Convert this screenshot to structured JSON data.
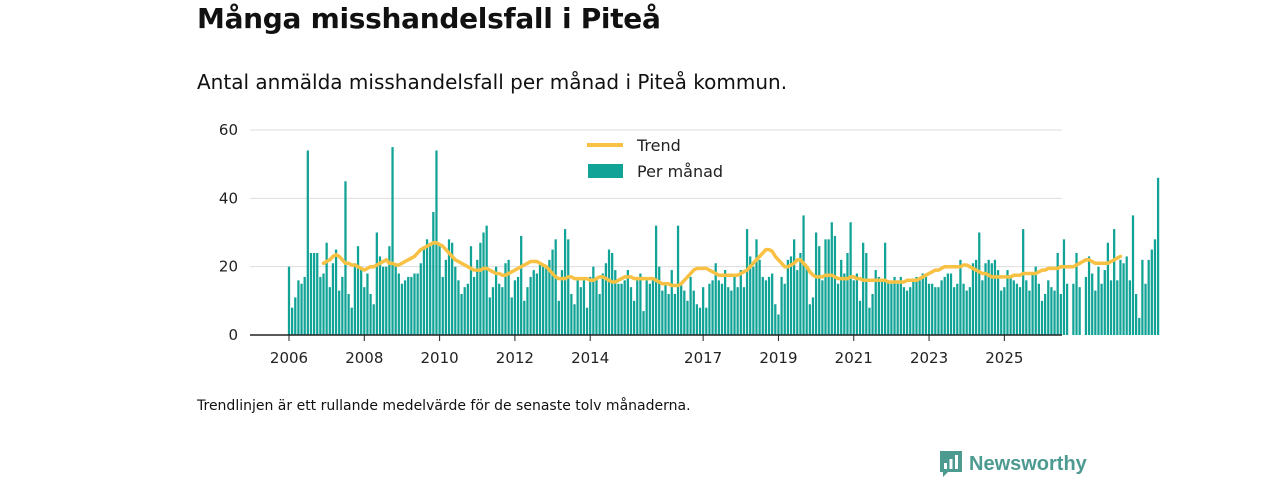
{
  "title": "Många misshandelsfall i Piteå",
  "subtitle": "Antal anmälda misshandelsfall per månad i Piteå kommun.",
  "footnote": "Trendlinjen är ett rullande medelvärde för de senaste tolv månaderna.",
  "brand": {
    "name": "Newsworthy",
    "icon": "bar-chart-logo-icon"
  },
  "colors": {
    "bars": "#10a396",
    "trend": "#f8c144",
    "axis": "#222222",
    "grid": "#dddddd",
    "brand": "#4d9a91"
  },
  "chart_data": {
    "type": "bar",
    "x_unit": "month",
    "start": "2006-01",
    "y_ticks": [
      0,
      20,
      40,
      60
    ],
    "x_ticks": [
      "2006",
      "2008",
      "2010",
      "2012",
      "2014",
      "2017",
      "2019",
      "2021",
      "2023",
      "2025"
    ],
    "ylim": [
      0,
      60
    ],
    "legend": {
      "placement": "top-center",
      "items": [
        "Trend",
        "Per månad"
      ]
    },
    "grid": true,
    "series": [
      {
        "name": "Per månad",
        "type": "bar",
        "values": [
          20,
          8,
          11,
          16,
          15,
          17,
          54,
          24,
          24,
          24,
          17,
          18,
          27,
          14,
          21,
          25,
          13,
          17,
          45,
          12,
          8,
          21,
          26,
          20,
          14,
          18,
          12,
          9,
          30,
          23,
          20,
          20,
          26,
          55,
          21,
          18,
          15,
          16,
          17,
          17,
          18,
          18,
          21,
          26,
          28,
          26,
          36,
          54,
          26,
          17,
          22,
          28,
          27,
          20,
          16,
          12,
          14,
          15,
          26,
          17,
          22,
          27,
          30,
          32,
          11,
          14,
          20,
          15,
          14,
          21,
          22,
          11,
          16,
          17,
          29,
          10,
          14,
          17,
          19,
          18,
          21,
          20,
          20,
          22,
          25,
          28,
          10,
          19,
          31,
          28,
          12,
          9,
          16,
          14,
          16,
          8,
          17,
          20,
          17,
          12,
          18,
          21,
          25,
          24,
          19,
          15,
          15,
          16,
          19,
          14,
          10,
          16,
          18,
          7,
          16,
          15,
          16,
          32,
          20,
          13,
          15,
          12,
          19,
          12,
          32,
          15,
          13,
          10,
          17,
          13,
          9,
          8,
          14,
          8,
          15,
          16,
          21,
          16,
          15,
          19,
          14,
          13,
          17,
          14,
          19,
          14,
          31,
          23,
          20,
          28,
          22,
          17,
          16,
          17,
          18,
          9,
          6,
          17,
          15,
          22,
          23,
          28,
          19,
          24,
          35,
          20,
          9,
          11,
          30,
          26,
          16,
          28,
          28,
          33,
          29,
          15,
          22,
          18,
          24,
          33,
          16,
          18,
          10,
          27,
          24,
          8,
          12,
          19,
          17,
          16,
          27,
          16,
          15,
          17,
          15,
          17,
          14,
          13,
          14,
          16,
          17,
          16,
          18,
          17,
          15,
          15,
          14,
          14,
          16,
          17,
          18,
          18,
          14,
          15,
          22,
          15,
          13,
          14,
          21,
          22,
          30,
          16,
          21,
          22,
          21,
          22,
          19,
          13,
          14,
          19,
          17,
          16,
          15,
          14,
          31,
          16,
          13,
          18,
          20,
          15,
          10,
          12,
          16,
          14,
          13,
          24,
          12,
          28,
          15,
          0,
          15,
          24,
          14,
          0,
          17,
          23,
          18,
          13,
          20,
          15,
          19,
          27,
          16,
          31,
          16,
          22,
          21,
          23,
          16,
          35,
          12,
          5,
          22,
          15,
          22,
          25,
          28,
          46
        ]
      },
      {
        "name": "Trend",
        "type": "line",
        "values": [
          null,
          null,
          null,
          null,
          null,
          null,
          null,
          null,
          null,
          null,
          null,
          21,
          21.5,
          22,
          23,
          23.5,
          23,
          22,
          21,
          21,
          20.5,
          20.5,
          20,
          19.5,
          19,
          19.5,
          20,
          20,
          20.5,
          21,
          21.5,
          22,
          21,
          21,
          20.5,
          20.5,
          21,
          21.5,
          22,
          22.5,
          23,
          24,
          25,
          25.5,
          26,
          26.5,
          27,
          27,
          26.5,
          26,
          25,
          24,
          23,
          22,
          21.5,
          21,
          20.5,
          20,
          19.5,
          19,
          19,
          19,
          19.5,
          19.5,
          19,
          18.5,
          18,
          18,
          17.5,
          17.5,
          18,
          18.5,
          19,
          19.5,
          20,
          20.5,
          21,
          21.5,
          21.5,
          21.5,
          21,
          20.5,
          20,
          19,
          18,
          17,
          16.5,
          16.5,
          16.5,
          17,
          17,
          16.5,
          16.5,
          16.5,
          16.5,
          16.5,
          16,
          16,
          16.5,
          17,
          17,
          16.5,
          16,
          15.5,
          15.5,
          16,
          16.5,
          17,
          17,
          17,
          16.5,
          16.5,
          16.5,
          16.5,
          16.5,
          16.5,
          16.5,
          16,
          15.5,
          15,
          15,
          15,
          14.5,
          14.5,
          14.5,
          15,
          16,
          17,
          18,
          19,
          19.5,
          19.5,
          19.5,
          19.5,
          19,
          18.5,
          18,
          17.5,
          17.5,
          17.5,
          17.5,
          17.5,
          17.5,
          17.5,
          18,
          18.5,
          19,
          20,
          21,
          22,
          23,
          24,
          25,
          25,
          24.5,
          23,
          22,
          21,
          20,
          20,
          20.5,
          21,
          22,
          22,
          21,
          20,
          18.5,
          17.5,
          17,
          17,
          17,
          17.5,
          17.5,
          17.5,
          17,
          16.5,
          16.5,
          16.5,
          16.5,
          17,
          17,
          16.5,
          16.5,
          16,
          16,
          16,
          16,
          16,
          16,
          16,
          16,
          15.5,
          15.5,
          15.5,
          15.5,
          15.5,
          15.5,
          16,
          16,
          16,
          16,
          16.5,
          17,
          17.5,
          18,
          18.5,
          19,
          19,
          19.5,
          20,
          20,
          20,
          20,
          20,
          20,
          20.5,
          20.5,
          20,
          19.5,
          19,
          18.5,
          18,
          18,
          17.5,
          17,
          17,
          17,
          17,
          17,
          17,
          17,
          17.5,
          17.5,
          17.5,
          18,
          18,
          18,
          18,
          18,
          18.5,
          19,
          19,
          19.5,
          19.5,
          19.5,
          19.5,
          20,
          20,
          20,
          20,
          20,
          20.5,
          21,
          21.5,
          22,
          22,
          21.5,
          21,
          21,
          21,
          21,
          21,
          21.5,
          22,
          22.5,
          23
        ]
      }
    ]
  }
}
